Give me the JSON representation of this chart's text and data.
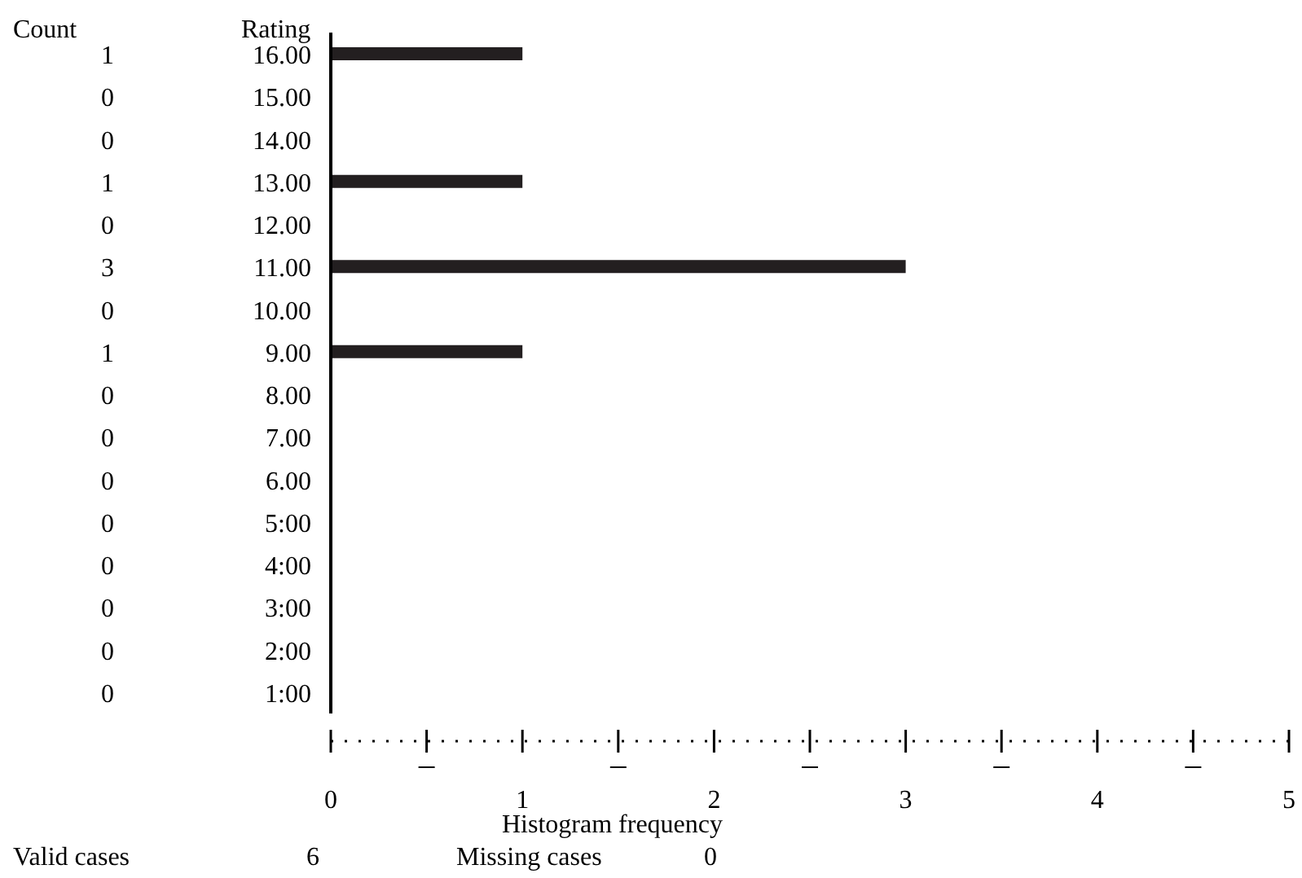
{
  "chart_data": {
    "type": "bar",
    "orientation": "horizontal",
    "ylabel": "Rating",
    "xlabel": "Histogram frequency",
    "categories": [
      "16.00",
      "15.00",
      "14.00",
      "13.00",
      "12.00",
      "11.00",
      "10.00",
      "9.00",
      "8.00",
      "7.00",
      "6.00",
      "5:00",
      "4:00",
      "3:00",
      "2:00",
      "1:00"
    ],
    "values": [
      1,
      0,
      0,
      1,
      0,
      3,
      0,
      1,
      0,
      0,
      0,
      0,
      0,
      0,
      0,
      0
    ],
    "color": "#231f20",
    "xlim": [
      0,
      5
    ],
    "xticks": [
      0,
      {
        "value": 0.5,
        "label": null
      },
      1,
      {
        "value": 1.5,
        "label": null
      },
      2,
      {
        "value": 2.5,
        "label": null
      },
      3,
      {
        "value": 3.5,
        "label": null
      },
      4,
      {
        "value": 4.5,
        "label": null
      },
      5
    ],
    "data_labels": true,
    "annotations": [
      "Count",
      "Valid cases",
      "6",
      "Missing cases",
      "0"
    ]
  }
}
